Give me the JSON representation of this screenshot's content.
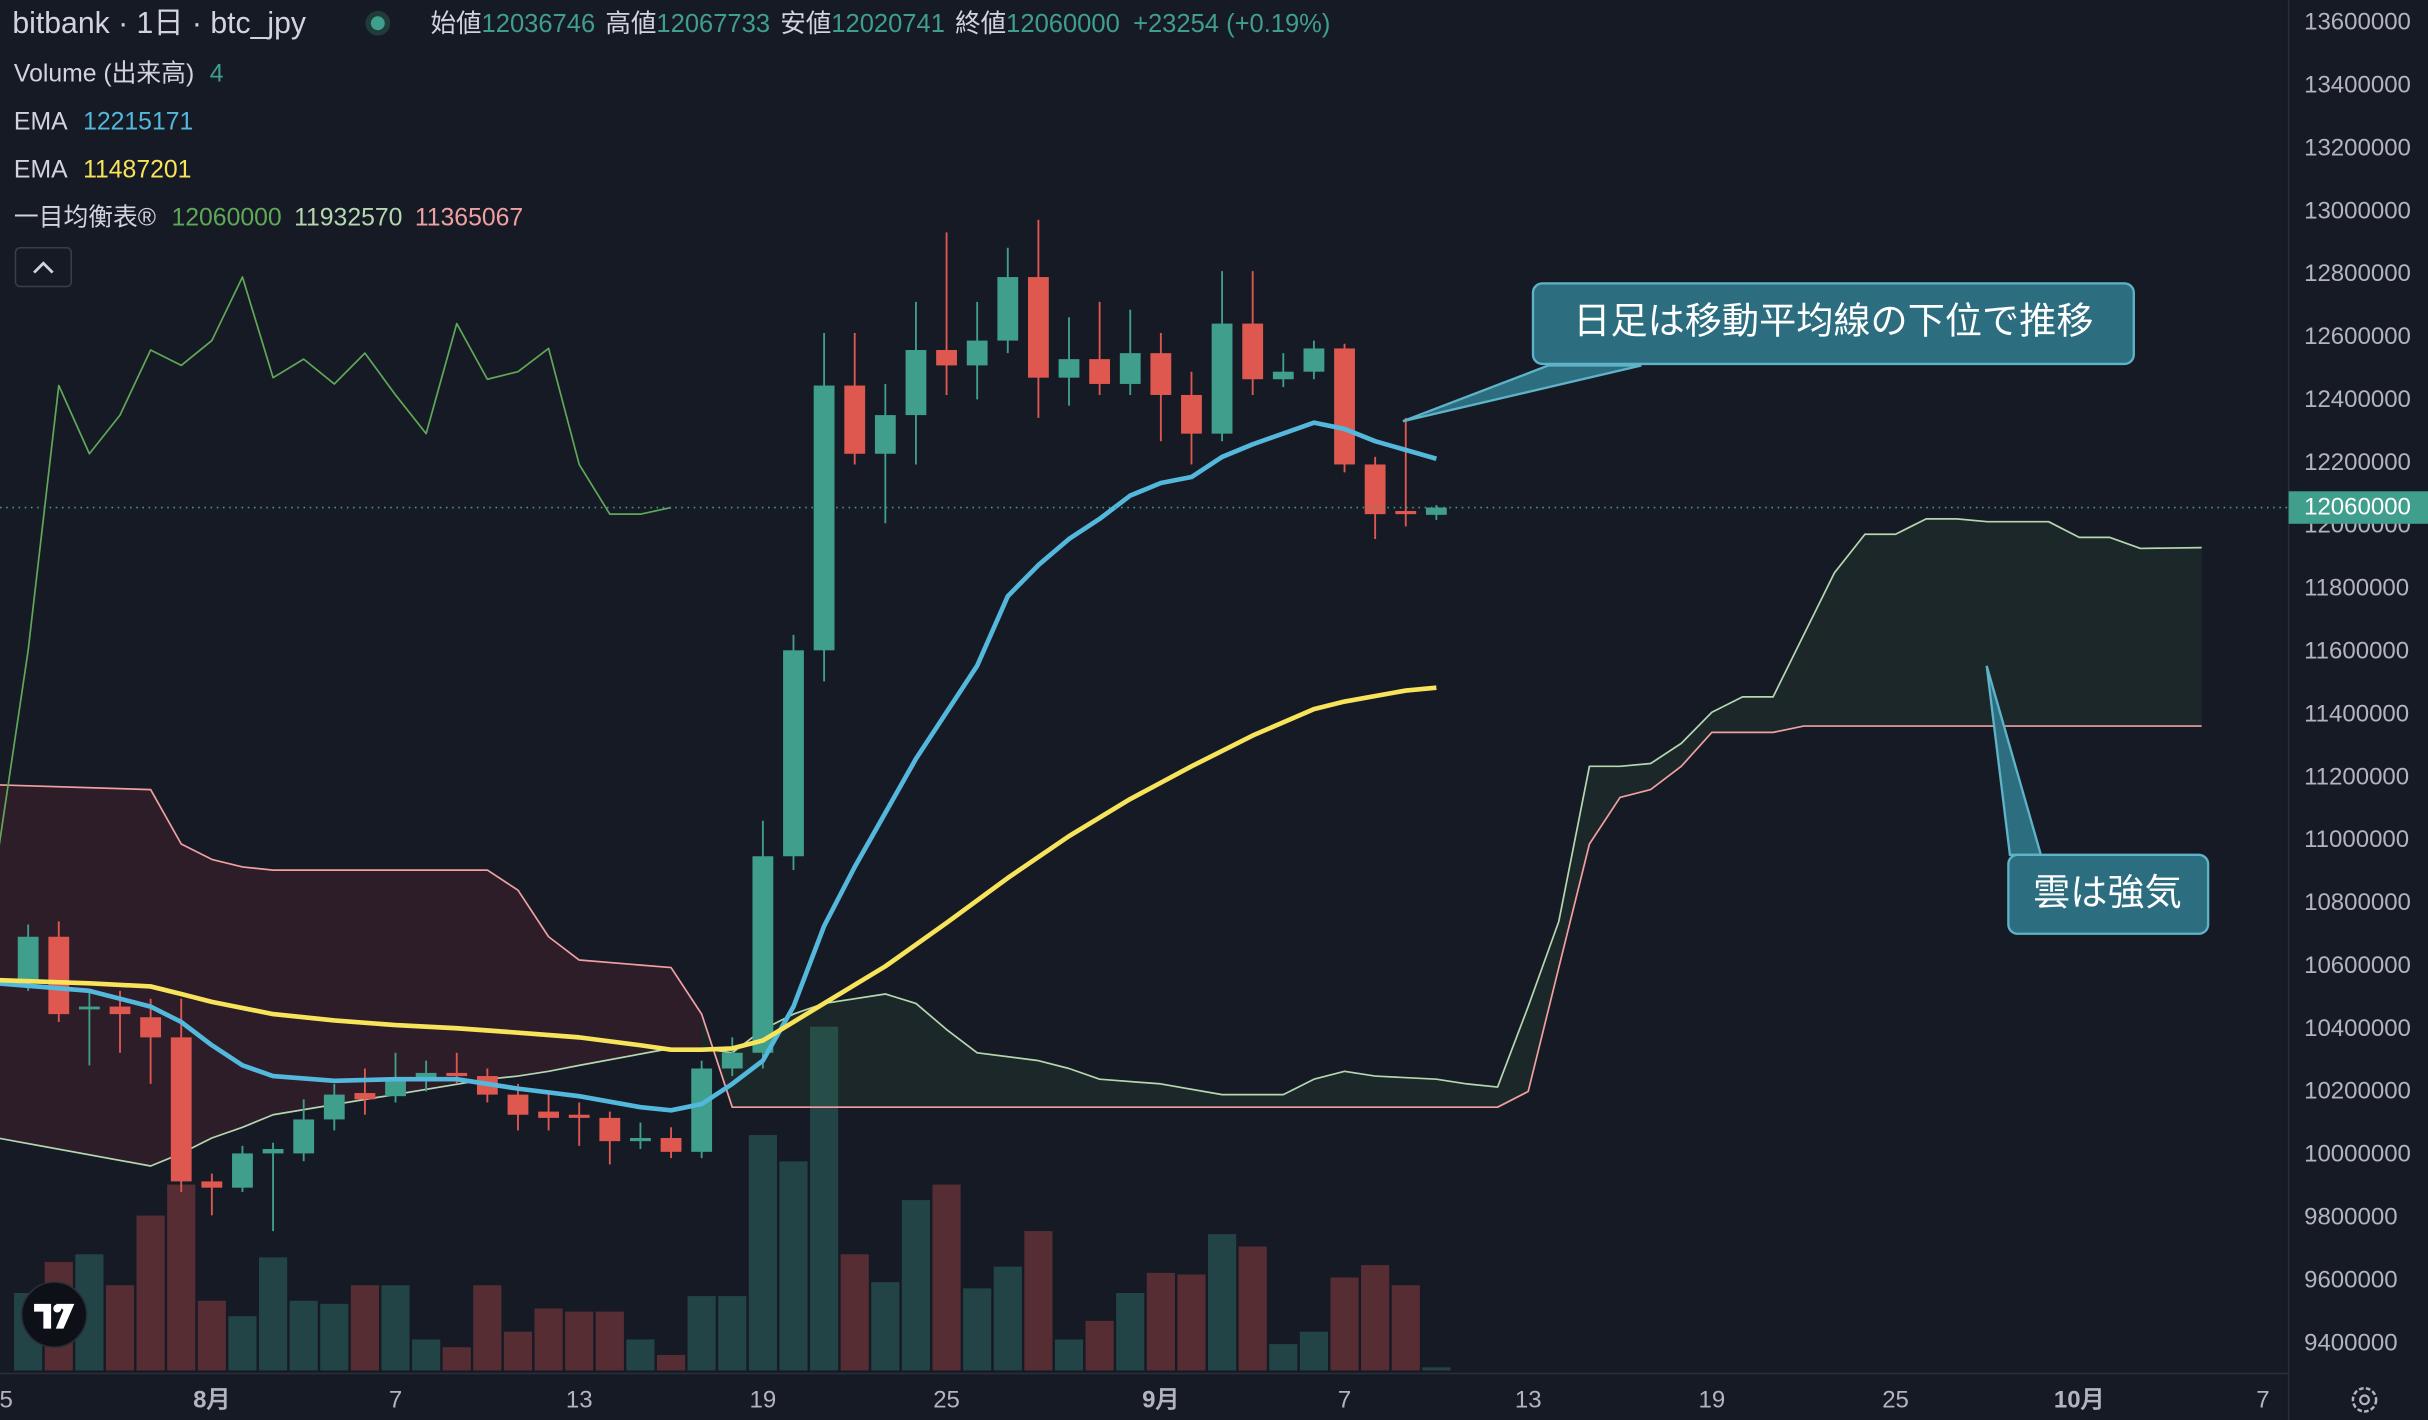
{
  "chart_data": {
    "type": "candlestick",
    "title": "bitbank · 1日 · btc_jpy",
    "ohlc_labels": [
      "始値",
      "高値",
      "安値",
      "終値"
    ],
    "change": "+23254 (+0.19%)",
    "up_color": "#3f9e8c",
    "down_color": "#df5850",
    "x": [
      1,
      2,
      3,
      4,
      5,
      6,
      7,
      8,
      9,
      10,
      11,
      12,
      13,
      14,
      15,
      16,
      17,
      18,
      19,
      20,
      21,
      22,
      23,
      24,
      25,
      26,
      27,
      28,
      29,
      30,
      31,
      32,
      33,
      34,
      35,
      36,
      37,
      38,
      39,
      40,
      41,
      42,
      43,
      44,
      45,
      46,
      47
    ],
    "open": [
      10547000,
      10695000,
      10464000,
      10473000,
      10439000,
      10375000,
      9917000,
      9897000,
      10006000,
      10006000,
      10114000,
      10198000,
      10188000,
      10242000,
      10262000,
      10252000,
      10193000,
      10139000,
      10129000,
      10119000,
      10045000,
      10055000,
      10011000,
      10276000,
      10326000,
      10951000,
      11606000,
      12448000,
      12231000,
      12354000,
      12561000,
      12512000,
      12591000,
      12793000,
      12473000,
      12532000,
      12453000,
      12551000,
      12418000,
      12295000,
      12645000,
      12468000,
      12492000,
      12566000,
      12197000,
      12049000,
      12036746
    ],
    "high": [
      10734000,
      10744000,
      10523000,
      10523000,
      10498000,
      10498000,
      9942000,
      10030000,
      10040000,
      10178000,
      10227000,
      10276000,
      10326000,
      10301000,
      10326000,
      10276000,
      10227000,
      10203000,
      10168000,
      10139000,
      10104000,
      10089000,
      10301000,
      10375000,
      11064000,
      11655000,
      12615000,
      12615000,
      12453000,
      12714000,
      12935000,
      12714000,
      12886000,
      12975000,
      12665000,
      12714000,
      12689000,
      12615000,
      12492000,
      12812000,
      12812000,
      12551000,
      12591000,
      12581000,
      12221000,
      12345000,
      12067733
    ],
    "low": [
      10523000,
      10424000,
      10286000,
      10326000,
      10227000,
      9883000,
      9809000,
      9883000,
      9759000,
      9981000,
      10079000,
      10129000,
      10168000,
      10203000,
      10227000,
      10168000,
      10079000,
      10079000,
      10030000,
      9971000,
      10020000,
      9991000,
      9991000,
      10252000,
      10276000,
      10907000,
      11507000,
      12197000,
      12010000,
      12197000,
      12418000,
      12404000,
      12551000,
      12345000,
      12384000,
      12418000,
      12418000,
      12271000,
      12197000,
      12271000,
      12418000,
      12443000,
      12468000,
      12172000,
      11960000,
      12000000,
      12020741
    ],
    "close": [
      10695000,
      10449000,
      10473000,
      10449000,
      10375000,
      9917000,
      9897000,
      10006000,
      10020000,
      10114000,
      10193000,
      10178000,
      10242000,
      10262000,
      10252000,
      10193000,
      10129000,
      10119000,
      10119000,
      10045000,
      10055000,
      10011000,
      10276000,
      10326000,
      10951000,
      11606000,
      12448000,
      12231000,
      12354000,
      12561000,
      12512000,
      12591000,
      12793000,
      12473000,
      12532000,
      12453000,
      12551000,
      12418000,
      12295000,
      12645000,
      12468000,
      12492000,
      12566000,
      12197000,
      12039000,
      12039000,
      12060000
    ],
    "volume": {
      "name": "Volume (出来高)",
      "values": [
        100,
        140,
        150,
        110,
        200,
        240,
        90,
        70,
        146,
        90,
        86,
        110,
        110,
        40,
        30,
        110,
        50,
        80,
        76,
        76,
        40,
        20,
        96,
        96,
        304,
        270,
        444,
        150,
        114,
        220,
        240,
        106,
        134,
        180,
        40,
        64,
        100,
        126,
        124,
        176,
        160,
        34,
        50,
        120,
        136,
        110,
        4
      ]
    },
    "series": [
      {
        "name": "EMA",
        "color": "#53b8dc",
        "x": [
          0,
          3,
          5,
          6,
          7,
          8,
          9,
          11,
          13,
          15,
          17,
          19,
          21,
          22,
          23,
          24,
          25,
          26,
          27,
          28,
          30,
          32,
          33,
          34,
          35,
          36,
          37,
          38,
          39,
          40,
          41,
          43,
          44,
          45,
          47
        ],
        "values": [
          10547000,
          10523000,
          10473000,
          10424000,
          10350000,
          10286000,
          10252000,
          10237000,
          10242000,
          10242000,
          10212000,
          10188000,
          10153000,
          10143000,
          10163000,
          10227000,
          10301000,
          10473000,
          10729000,
          10917000,
          11261000,
          11557000,
          11778000,
          11877000,
          11960000,
          12024000,
          12098000,
          12138000,
          12157000,
          12221000,
          12261000,
          12330000,
          12310000,
          12271000,
          12215171
        ]
      },
      {
        "name": "EMA",
        "color": "#f7e45a",
        "x": [
          0,
          3,
          5,
          6,
          7,
          9,
          11,
          13,
          15,
          17,
          19,
          21,
          22,
          23,
          24,
          25,
          26,
          27,
          29,
          31,
          33,
          35,
          37,
          39,
          41,
          43,
          44,
          46,
          47
        ],
        "values": [
          10557000,
          10547000,
          10537000,
          10513000,
          10488000,
          10449000,
          10429000,
          10414000,
          10404000,
          10390000,
          10375000,
          10350000,
          10336000,
          10336000,
          10340000,
          10365000,
          10424000,
          10483000,
          10601000,
          10739000,
          10882000,
          11015000,
          11133000,
          11237000,
          11335000,
          11419000,
          11443000,
          11478000,
          11487201
        ]
      }
    ],
    "ichimoku": {
      "name": "一目均衡表®",
      "lagging": {
        "color": "#5fa858",
        "x": [
          0,
          1,
          2,
          3,
          4,
          5,
          6,
          7,
          8,
          9,
          10,
          11,
          12,
          13,
          14,
          15,
          16,
          17,
          18,
          19,
          20,
          21,
          22
        ],
        "values": [
          10951000,
          11606000,
          12448000,
          12231000,
          12354000,
          12561000,
          12512000,
          12591000,
          12793000,
          12473000,
          12532000,
          12453000,
          12551000,
          12418000,
          12295000,
          12645000,
          12468000,
          12492000,
          12566000,
          12197000,
          12039000,
          12039000,
          12060000
        ]
      },
      "cloud_x": [
        0,
        5,
        6,
        7,
        8,
        9,
        16,
        17,
        18,
        19,
        22,
        23,
        24,
        25,
        26,
        27,
        29,
        30,
        31,
        32,
        34,
        35,
        36,
        38,
        40,
        42,
        43,
        44,
        45,
        47,
        48,
        49,
        50,
        51,
        52,
        53,
        54,
        55,
        56,
        57,
        58,
        59,
        60,
        61,
        62,
        63,
        64,
        65,
        66,
        67,
        68,
        69,
        70,
        72
      ],
      "span_a": {
        "color": "#b5d7b0",
        "values": [
          10055000,
          9966000,
          10006000,
          10055000,
          10089000,
          10129000,
          10242000,
          10252000,
          10267000,
          10286000,
          10340000,
          10340000,
          10326000,
          10400000,
          10449000,
          10483000,
          10513000,
          10483000,
          10400000,
          10326000,
          10301000,
          10276000,
          10242000,
          10227000,
          10193000,
          10193000,
          10242000,
          10267000,
          10252000,
          10242000,
          10227000,
          10217000,
          10473000,
          10744000,
          11237000,
          11237000,
          11246000,
          11310000,
          11409000,
          11458000,
          11458000,
          11655000,
          11852000,
          11975000,
          11975000,
          12024000,
          12024000,
          12015000,
          12015000,
          12015000,
          11965000,
          11965000,
          11930000,
          11932570
        ]
      },
      "span_b": {
        "color": "#f0a0a0",
        "values": [
          11178000,
          11163000,
          10990000,
          10941000,
          10917000,
          10907000,
          10907000,
          10843000,
          10695000,
          10621000,
          10597000,
          10449000,
          10153000,
          10153000,
          10153000,
          10153000,
          10153000,
          10153000,
          10153000,
          10153000,
          10153000,
          10153000,
          10153000,
          10153000,
          10153000,
          10153000,
          10153000,
          10153000,
          10153000,
          10153000,
          10153000,
          10153000,
          10203000,
          10597000,
          10990000,
          11138000,
          11163000,
          11237000,
          11345000,
          11345000,
          11345000,
          11365067,
          11365067,
          11365067,
          11365067,
          11365067,
          11365067,
          11365067,
          11365067,
          11365067,
          11365067,
          11365067,
          11365067,
          11365067
        ]
      },
      "cloud_colors": [
        "#4caf50",
        "#f23645"
      ]
    },
    "annotations": [
      {
        "text": "日足は移動平均線の下位で推移"
      },
      {
        "text": "雲は強気"
      }
    ],
    "xlim": [
      0.08,
      74.84
    ],
    "xticks": [
      {
        "value": 0,
        "label": "5"
      },
      {
        "value": 7,
        "label": "8月"
      },
      {
        "value": 13,
        "label": "7"
      },
      {
        "value": 19,
        "label": "13"
      },
      {
        "value": 25,
        "label": "19"
      },
      {
        "value": 31,
        "label": "25"
      },
      {
        "value": 38,
        "label": "9月"
      },
      {
        "value": 44,
        "label": "7"
      },
      {
        "value": 50,
        "label": "13"
      },
      {
        "value": 56,
        "label": "19"
      },
      {
        "value": 62,
        "label": "25"
      },
      {
        "value": 68,
        "label": "10月"
      },
      {
        "value": 74,
        "label": "7"
      }
    ],
    "ylim": [
      9306000,
      13674000
    ],
    "yticks": [
      9400000,
      9600000,
      9800000,
      10000000,
      10200000,
      10400000,
      10600000,
      10800000,
      11000000,
      11200000,
      11400000,
      11600000,
      11800000,
      12000000,
      12200000,
      12400000,
      12600000,
      12800000,
      13000000,
      13200000,
      13400000,
      13600000
    ],
    "grid": false
  }
}
